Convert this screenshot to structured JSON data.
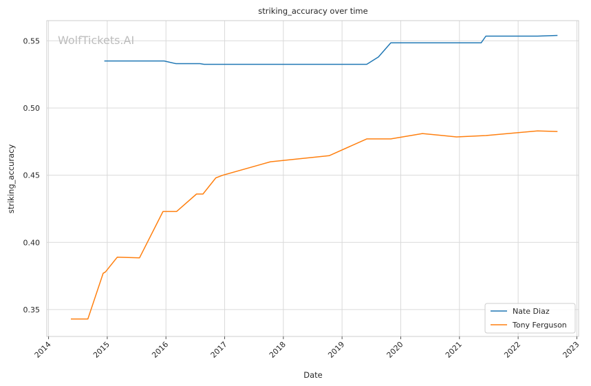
{
  "chart_data": {
    "type": "line",
    "title": "striking_accuracy over time",
    "xlabel": "Date",
    "ylabel": "striking_accuracy",
    "watermark": "WolfTickets.AI",
    "xlim": [
      2013.97,
      2023.03
    ],
    "ylim": [
      0.33,
      0.565
    ],
    "x_ticks": [
      2014,
      2015,
      2016,
      2017,
      2018,
      2019,
      2020,
      2021,
      2022,
      2023
    ],
    "x_tick_labels": [
      "2014",
      "2015",
      "2016",
      "2017",
      "2018",
      "2019",
      "2020",
      "2021",
      "2022",
      "2023"
    ],
    "y_ticks": [
      0.35,
      0.4,
      0.45,
      0.5,
      0.55
    ],
    "y_tick_labels": [
      "0.35",
      "0.40",
      "0.45",
      "0.50",
      "0.55"
    ],
    "grid": true,
    "legend_position": "bottom-right",
    "series": [
      {
        "name": "Nate Diaz",
        "color": "#1f77b4",
        "points": [
          [
            2014.95,
            0.535
          ],
          [
            2015.97,
            0.535
          ],
          [
            2016.17,
            0.533
          ],
          [
            2016.58,
            0.533
          ],
          [
            2016.65,
            0.5325
          ],
          [
            2017.5,
            0.5325
          ],
          [
            2018.5,
            0.5325
          ],
          [
            2019.42,
            0.5325
          ],
          [
            2019.62,
            0.538
          ],
          [
            2019.83,
            0.5485
          ],
          [
            2020.5,
            0.5485
          ],
          [
            2021.37,
            0.5485
          ],
          [
            2021.45,
            0.5535
          ],
          [
            2022.33,
            0.5535
          ],
          [
            2022.67,
            0.554
          ]
        ]
      },
      {
        "name": "Tony Ferguson",
        "color": "#ff7f0e",
        "points": [
          [
            2014.38,
            0.343
          ],
          [
            2014.67,
            0.343
          ],
          [
            2014.93,
            0.377
          ],
          [
            2014.97,
            0.378
          ],
          [
            2015.17,
            0.389
          ],
          [
            2015.55,
            0.3885
          ],
          [
            2015.95,
            0.423
          ],
          [
            2016.18,
            0.423
          ],
          [
            2016.52,
            0.436
          ],
          [
            2016.63,
            0.436
          ],
          [
            2016.85,
            0.448
          ],
          [
            2016.97,
            0.45
          ],
          [
            2017.78,
            0.46
          ],
          [
            2018.78,
            0.4645
          ],
          [
            2019.42,
            0.477
          ],
          [
            2019.83,
            0.477
          ],
          [
            2020.37,
            0.481
          ],
          [
            2020.95,
            0.4785
          ],
          [
            2021.45,
            0.4795
          ],
          [
            2022.33,
            0.483
          ],
          [
            2022.67,
            0.4825
          ]
        ]
      }
    ]
  }
}
